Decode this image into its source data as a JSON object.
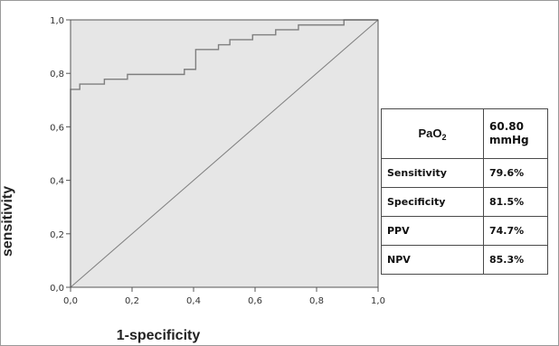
{
  "chart_data": {
    "type": "line",
    "xlabel": "1-specificity",
    "ylabel": "sensitivity",
    "xlim": [
      0,
      1
    ],
    "ylim": [
      0,
      1
    ],
    "x_ticks": [
      "0,0",
      "0,2",
      "0,4",
      "0,6",
      "0,8",
      "1,0"
    ],
    "y_ticks": [
      "0,0",
      "0,2",
      "0,4",
      "0,6",
      "0,8",
      "1,0"
    ],
    "grid": false,
    "background": "#e6e6e6",
    "line_color": "#7f7f7f",
    "series": [
      {
        "style": "step",
        "points": [
          [
            0.0,
            0.0
          ],
          [
            0.0,
            0.74
          ],
          [
            0.03,
            0.74
          ],
          [
            0.03,
            0.76
          ],
          [
            0.11,
            0.76
          ],
          [
            0.11,
            0.778
          ],
          [
            0.185,
            0.778
          ],
          [
            0.185,
            0.796
          ],
          [
            0.37,
            0.796
          ],
          [
            0.37,
            0.815
          ],
          [
            0.407,
            0.815
          ],
          [
            0.407,
            0.889
          ],
          [
            0.481,
            0.889
          ],
          [
            0.481,
            0.907
          ],
          [
            0.518,
            0.907
          ],
          [
            0.518,
            0.926
          ],
          [
            0.592,
            0.926
          ],
          [
            0.592,
            0.944
          ],
          [
            0.667,
            0.944
          ],
          [
            0.667,
            0.963
          ],
          [
            0.741,
            0.963
          ],
          [
            0.741,
            0.981
          ],
          [
            0.889,
            0.981
          ],
          [
            0.889,
            1.0
          ],
          [
            1.0,
            1.0
          ]
        ]
      },
      {
        "style": "reference",
        "points": [
          [
            0,
            0
          ],
          [
            1,
            1
          ]
        ]
      }
    ]
  },
  "table": {
    "header": {
      "label_main": "PaO",
      "label_sub": "2",
      "value_line1": "60.80",
      "value_line2": "mmHg"
    },
    "rows": [
      {
        "label": "Sensitivity",
        "value": "79.6%"
      },
      {
        "label": "Specificity",
        "value": "81.5%"
      },
      {
        "label": "PPV",
        "value": "74.7%"
      },
      {
        "label": "NPV",
        "value": "85.3%"
      }
    ]
  }
}
